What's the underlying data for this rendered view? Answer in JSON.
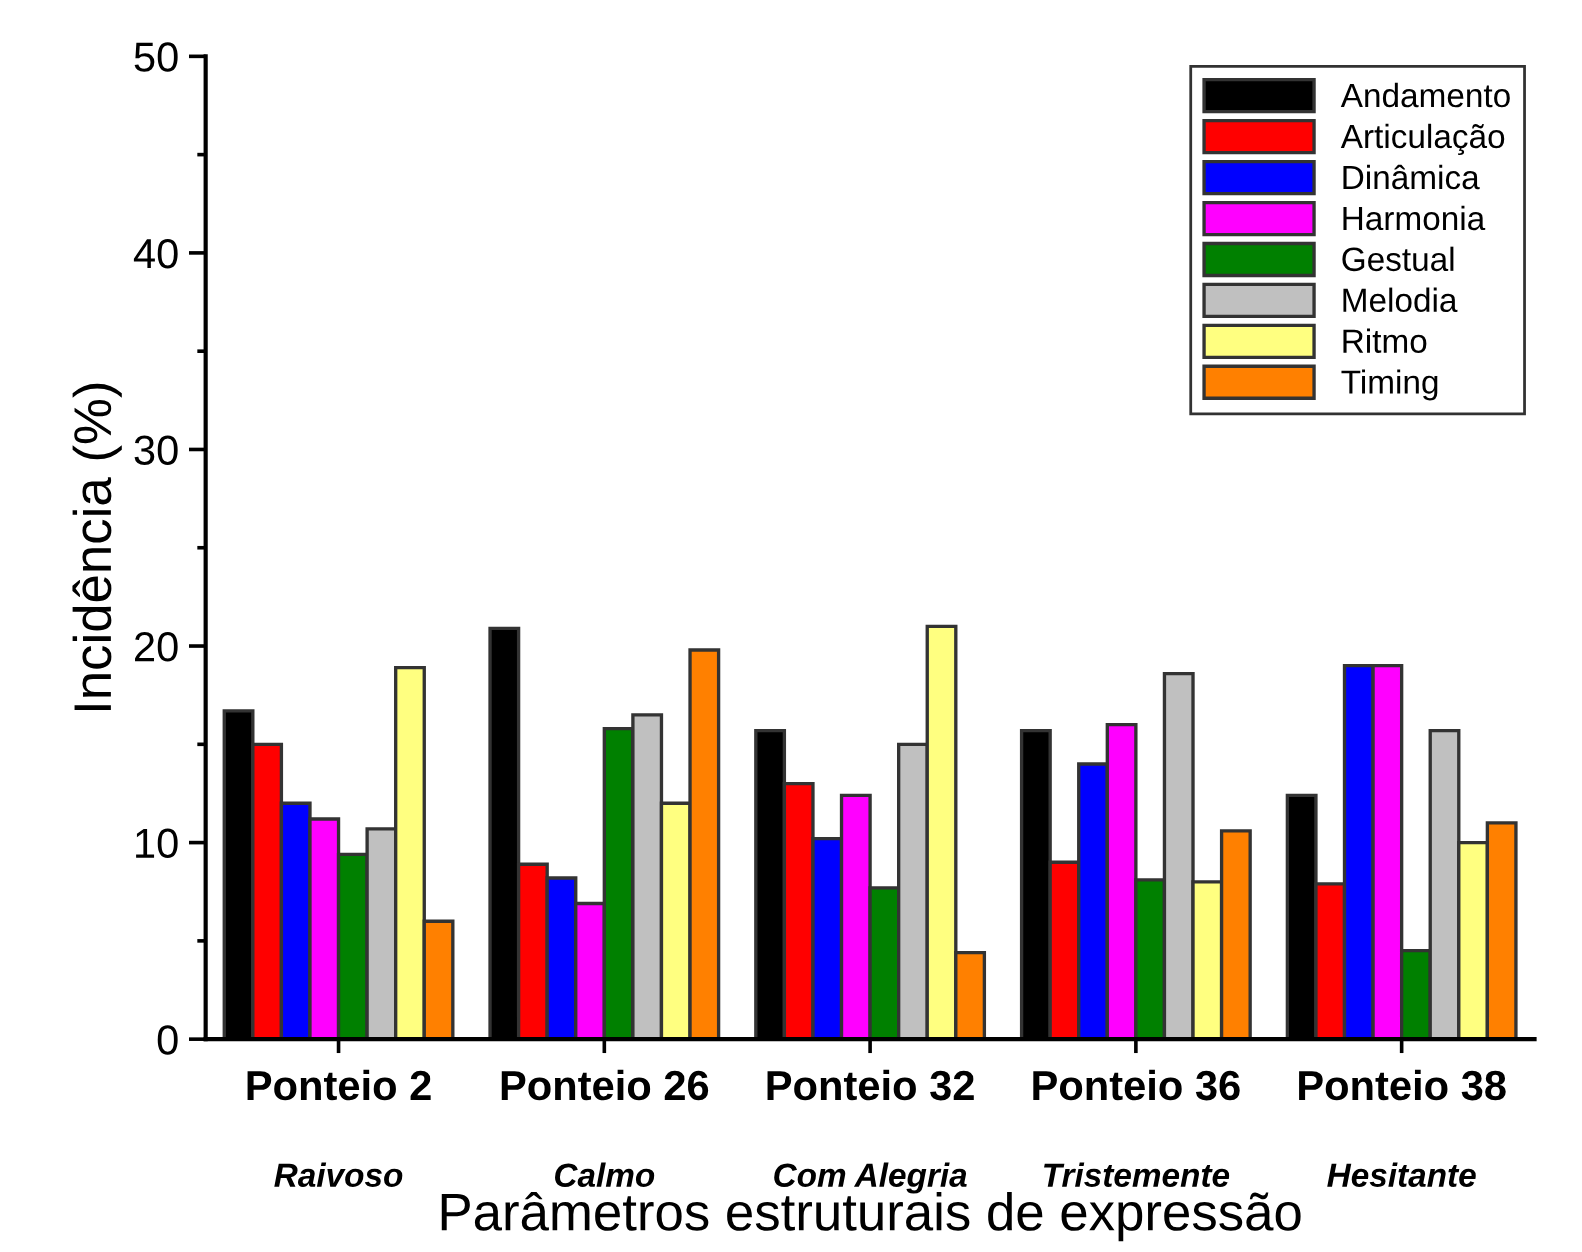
{
  "chart_data": {
    "type": "bar",
    "xlabel": "Parâmetros estruturais de expressão",
    "ylabel": "Incidência (%)",
    "categories": [
      "Ponteio 2",
      "Ponteio 26",
      "Ponteio 32",
      "Ponteio 36",
      "Ponteio 38"
    ],
    "annotations": [
      "Raivoso",
      "Calmo",
      "Com Alegria",
      "Tristemente",
      "Hesitante"
    ],
    "ylim": [
      0,
      50
    ],
    "yticks": [
      0,
      10,
      20,
      30,
      40,
      50
    ],
    "grid": false,
    "legend": "top right",
    "series": [
      {
        "name": "Andamento",
        "color": "#000000",
        "values": [
          16.7,
          20.9,
          15.7,
          15.7,
          12.4
        ]
      },
      {
        "name": "Articulação",
        "color": "#ff0000",
        "values": [
          15.0,
          8.9,
          13.0,
          9.0,
          7.9
        ]
      },
      {
        "name": "Dinâmica",
        "color": "#0000ff",
        "values": [
          12.0,
          8.2,
          10.2,
          14.0,
          19.0
        ]
      },
      {
        "name": "Harmonia",
        "color": "#ff00ff",
        "values": [
          11.2,
          6.9,
          12.4,
          16.0,
          19.0
        ]
      },
      {
        "name": "Gestual",
        "color": "#008000",
        "values": [
          9.4,
          15.8,
          7.7,
          8.1,
          4.5
        ]
      },
      {
        "name": "Melodia",
        "color": "#c0c0c0",
        "values": [
          10.7,
          16.5,
          15.0,
          18.6,
          15.7
        ]
      },
      {
        "name": "Ritmo",
        "color": "#ffff80",
        "values": [
          18.9,
          12.0,
          21.0,
          8.0,
          10.0
        ]
      },
      {
        "name": "Timing",
        "color": "#ff8000",
        "values": [
          6.0,
          19.8,
          4.4,
          10.6,
          11.0
        ]
      }
    ]
  }
}
